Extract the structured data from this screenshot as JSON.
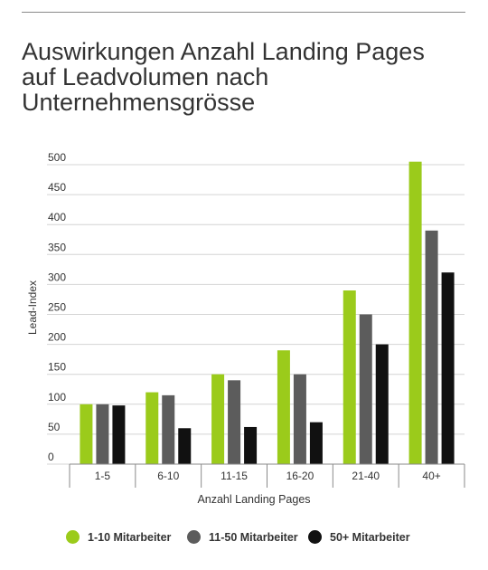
{
  "title": {
    "lines": [
      "Auswirkungen Anzahl Landing Pages",
      "auf Leadvolumen nach",
      "Unternehmensgrösse"
    ]
  },
  "colors": {
    "series": [
      "#9bcb1b",
      "#5c5c5c",
      "#111111"
    ],
    "grid": "#d4d4d4",
    "axis": "#8a8a8a"
  },
  "chart_data": {
    "type": "bar",
    "title": "Auswirkungen Anzahl Landing Pages auf Leadvolumen nach Unternehmensgrösse",
    "xlabel": "Anzahl Landing Pages",
    "ylabel": "Lead-Index",
    "categories": [
      "1-5",
      "6-10",
      "11-15",
      "16-20",
      "21-40",
      "40+"
    ],
    "series": [
      {
        "name": "1-10 Mitarbeiter",
        "values": [
          100,
          120,
          150,
          190,
          290,
          505
        ]
      },
      {
        "name": "11-50 Mitarbeiter",
        "values": [
          100,
          115,
          140,
          150,
          250,
          390
        ]
      },
      {
        "name": "50+ Mitarbeiter",
        "values": [
          98,
          60,
          62,
          70,
          200,
          320
        ]
      }
    ],
    "ylim": [
      0,
      500
    ],
    "yticks": [
      "0",
      "50",
      "100",
      "150",
      "200",
      "250",
      "300",
      "350",
      "400",
      "450",
      "500"
    ],
    "grid": true,
    "legend": "bottom"
  }
}
